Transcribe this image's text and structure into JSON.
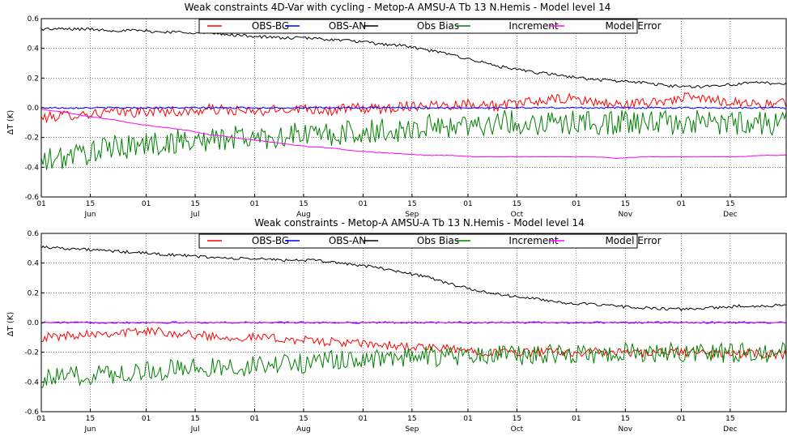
{
  "chart_data": [
    {
      "type": "line",
      "title": "Weak constraints 4D-Var with cycling - Metop-A AMSU-A Tb 13 N.Hemis - Model level 14",
      "ylabel": "ΔT (K)",
      "ylim": [
        -0.6,
        0.6
      ],
      "yticks": [
        "0.6",
        "0.4",
        "0.2",
        "0.0",
        "-0.2",
        "-0.4",
        "-0.6"
      ],
      "xlim": [
        "2011-06-01",
        "2011-12-31"
      ],
      "day_tick_labels": [
        "01",
        "15",
        "01",
        "15",
        "01",
        "15",
        "01",
        "15",
        "01",
        "15",
        "01",
        "15",
        "01",
        "15"
      ],
      "month_labels": [
        "Jun",
        "Jul",
        "Aug",
        "Sep",
        "Oct",
        "Nov",
        "Dec"
      ],
      "grid": true,
      "legend_position": "top-center",
      "samples_per_day": 2,
      "series": [
        {
          "name": "OBS-BG",
          "color": "#ff0000",
          "values": [
            -0.07,
            -0.05,
            -0.04,
            -0.03,
            -0.03,
            -0.02,
            -0.03,
            -0.01,
            -0.02,
            -0.03,
            -0.01,
            0.0,
            -0.02,
            0.0,
            -0.01,
            0.01,
            0.02,
            0.02,
            0.03,
            0.01,
            0.03,
            0.05,
            0.06,
            0.04,
            0.02,
            0.03,
            0.05,
            0.07,
            0.05,
            0.04,
            0.02,
            0.03
          ],
          "noise": 0.035
        },
        {
          "name": "OBS-AN",
          "color": "#0000ff",
          "values": [
            0.0,
            0.0,
            0.0,
            0.0,
            0.0,
            0.0,
            0.0,
            0.0,
            0.0,
            0.0,
            0.0,
            0.0,
            0.0,
            0.0,
            0.0,
            0.0,
            0.0,
            0.0,
            0.0,
            0.0,
            0.0,
            0.0,
            0.0,
            0.0,
            0.0,
            0.0,
            0.0,
            0.0,
            0.0,
            0.0,
            0.0,
            0.0
          ],
          "noise": 0.006
        },
        {
          "name": "Obs Bias",
          "color": "#000000",
          "values": [
            0.53,
            0.53,
            0.53,
            0.52,
            0.52,
            0.51,
            0.51,
            0.5,
            0.49,
            0.48,
            0.47,
            0.47,
            0.46,
            0.45,
            0.43,
            0.42,
            0.39,
            0.36,
            0.32,
            0.28,
            0.25,
            0.23,
            0.21,
            0.19,
            0.18,
            0.17,
            0.15,
            0.14,
            0.15,
            0.16,
            0.17,
            0.16
          ],
          "noise": 0.01
        },
        {
          "name": "Increment",
          "color": "#008000",
          "values": [
            -0.37,
            -0.33,
            -0.3,
            -0.27,
            -0.25,
            -0.24,
            -0.22,
            -0.22,
            -0.2,
            -0.2,
            -0.19,
            -0.18,
            -0.18,
            -0.17,
            -0.16,
            -0.15,
            -0.13,
            -0.12,
            -0.11,
            -0.1,
            -0.1,
            -0.1,
            -0.1,
            -0.1,
            -0.1,
            -0.1,
            -0.1,
            -0.1,
            -0.1,
            -0.1,
            -0.1,
            -0.1
          ],
          "noise": 0.085
        },
        {
          "name": "Model Error",
          "color": "#ff00ff",
          "values": [
            -0.01,
            -0.03,
            -0.06,
            -0.08,
            -0.11,
            -0.13,
            -0.15,
            -0.18,
            -0.2,
            -0.22,
            -0.24,
            -0.26,
            -0.27,
            -0.29,
            -0.3,
            -0.31,
            -0.32,
            -0.32,
            -0.33,
            -0.33,
            -0.33,
            -0.33,
            -0.33,
            -0.33,
            -0.34,
            -0.33,
            -0.33,
            -0.33,
            -0.33,
            -0.33,
            -0.32,
            -0.32
          ],
          "noise": 0.002
        }
      ]
    },
    {
      "type": "line",
      "title": "Weak constraints - Metop-A AMSU-A Tb 13 N.Hemis - Model level 14",
      "ylabel": "ΔT (K)",
      "ylim": [
        -0.6,
        0.6
      ],
      "yticks": [
        "0.6",
        "0.4",
        "0.2",
        "0.0",
        "-0.2",
        "-0.4",
        "-0.6"
      ],
      "xlim": [
        "2011-06-01",
        "2011-12-31"
      ],
      "day_tick_labels": [
        "01",
        "15",
        "01",
        "15",
        "01",
        "15",
        "01",
        "15",
        "01",
        "15",
        "01",
        "15",
        "01",
        "15"
      ],
      "month_labels": [
        "Jun",
        "Jul",
        "Aug",
        "Sep",
        "Oct",
        "Nov",
        "Dec"
      ],
      "grid": true,
      "legend_position": "top-center",
      "samples_per_day": 2,
      "series": [
        {
          "name": "OBS-BG",
          "color": "#ff0000",
          "values": [
            -0.1,
            -0.09,
            -0.07,
            -0.07,
            -0.06,
            -0.06,
            -0.08,
            -0.09,
            -0.1,
            -0.1,
            -0.11,
            -0.12,
            -0.13,
            -0.14,
            -0.15,
            -0.16,
            -0.17,
            -0.18,
            -0.19,
            -0.2,
            -0.2,
            -0.2,
            -0.2,
            -0.2,
            -0.2,
            -0.21,
            -0.2,
            -0.2,
            -0.21,
            -0.21,
            -0.21,
            -0.22
          ],
          "noise": 0.03
        },
        {
          "name": "OBS-AN",
          "color": "#0000ff",
          "values": [
            0.0,
            0.0,
            0.0,
            0.0,
            0.0,
            0.0,
            0.0,
            0.0,
            0.0,
            0.0,
            0.0,
            0.0,
            0.0,
            0.0,
            0.0,
            0.0,
            0.0,
            0.0,
            0.0,
            0.0,
            0.0,
            0.0,
            0.0,
            0.0,
            0.0,
            0.0,
            0.0,
            0.0,
            0.0,
            0.0,
            0.0,
            0.0
          ],
          "noise": 0.006
        },
        {
          "name": "Obs Bias",
          "color": "#000000",
          "values": [
            0.51,
            0.5,
            0.49,
            0.48,
            0.47,
            0.46,
            0.45,
            0.44,
            0.43,
            0.43,
            0.42,
            0.42,
            0.41,
            0.39,
            0.37,
            0.34,
            0.31,
            0.26,
            0.22,
            0.19,
            0.17,
            0.15,
            0.13,
            0.12,
            0.11,
            0.1,
            0.09,
            0.09,
            0.1,
            0.11,
            0.11,
            0.12
          ],
          "noise": 0.01
        },
        {
          "name": "Increment",
          "color": "#008000",
          "values": [
            -0.38,
            -0.37,
            -0.35,
            -0.34,
            -0.33,
            -0.32,
            -0.31,
            -0.3,
            -0.3,
            -0.29,
            -0.28,
            -0.27,
            -0.26,
            -0.25,
            -0.24,
            -0.24,
            -0.23,
            -0.23,
            -0.22,
            -0.22,
            -0.22,
            -0.21,
            -0.21,
            -0.21,
            -0.2,
            -0.2,
            -0.2,
            -0.2,
            -0.2,
            -0.2,
            -0.2,
            -0.2
          ],
          "noise": 0.07
        },
        {
          "name": "Model Error",
          "color": "#ff00ff",
          "values": [
            0.0,
            0.0,
            0.0,
            0.0,
            0.0,
            0.0,
            0.0,
            0.0,
            0.0,
            0.0,
            0.0,
            0.0,
            0.0,
            0.0,
            0.0,
            0.0,
            0.0,
            0.0,
            0.0,
            0.0,
            0.0,
            0.0,
            0.0,
            0.0,
            0.0,
            0.0,
            0.0,
            0.0,
            0.0,
            0.0,
            0.0,
            0.0
          ],
          "noise": 0.002
        }
      ]
    }
  ]
}
